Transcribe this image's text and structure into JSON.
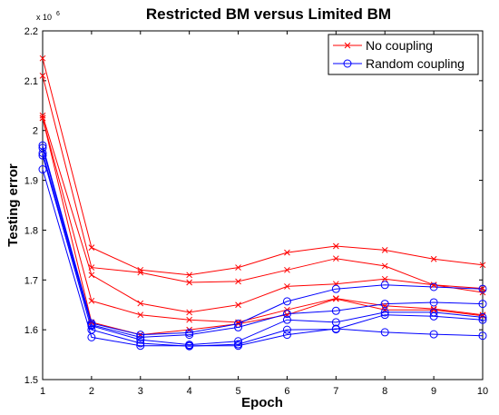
{
  "chart_data": {
    "type": "line",
    "title": "Restricted BM versus Limited BM",
    "xlabel": "Epoch",
    "ylabel": "Testing error",
    "y_multiplier_label": "x 10",
    "y_multiplier_exponent": "6",
    "x": [
      1,
      2,
      3,
      4,
      5,
      6,
      7,
      8,
      9,
      10
    ],
    "xlim": [
      1,
      10
    ],
    "ylim": [
      1.5,
      2.2
    ],
    "x_ticks": [
      "1",
      "2",
      "3",
      "4",
      "5",
      "6",
      "7",
      "8",
      "9",
      "10"
    ],
    "y_ticks": [
      "1.5",
      "1.6",
      "1.7",
      "1.8",
      "1.9",
      "2",
      "2.1",
      "2.2"
    ],
    "grid": false,
    "legend_position": "top-right",
    "groups": [
      {
        "name": "No coupling",
        "color": "#ff0000",
        "marker": "x",
        "series": [
          [
            2.145,
            1.765,
            1.72,
            1.71,
            1.725,
            1.755,
            1.768,
            1.76,
            1.742,
            1.73
          ],
          [
            2.11,
            1.725,
            1.715,
            1.695,
            1.697,
            1.72,
            1.743,
            1.728,
            1.69,
            1.683
          ],
          [
            2.03,
            1.71,
            1.653,
            1.635,
            1.65,
            1.687,
            1.692,
            1.702,
            1.69,
            1.675
          ],
          [
            2.025,
            1.658,
            1.63,
            1.62,
            1.615,
            1.64,
            1.663,
            1.648,
            1.642,
            1.63
          ],
          [
            2.025,
            1.615,
            1.59,
            1.6,
            1.612,
            1.63,
            1.662,
            1.64,
            1.64,
            1.628
          ]
        ]
      },
      {
        "name": "Random coupling",
        "color": "#0000ff",
        "marker": "o",
        "series": [
          [
            1.97,
            1.613,
            1.59,
            1.594,
            1.612,
            1.657,
            1.682,
            1.69,
            1.686,
            1.682
          ],
          [
            1.965,
            1.61,
            1.585,
            1.59,
            1.605,
            1.632,
            1.638,
            1.652,
            1.655,
            1.652
          ],
          [
            1.955,
            1.608,
            1.58,
            1.57,
            1.577,
            1.62,
            1.615,
            1.635,
            1.635,
            1.625
          ],
          [
            1.95,
            1.6,
            1.573,
            1.567,
            1.571,
            1.6,
            1.601,
            1.63,
            1.627,
            1.62
          ],
          [
            1.922,
            1.585,
            1.568,
            1.568,
            1.568,
            1.59,
            1.602,
            1.595,
            1.591,
            1.588
          ]
        ]
      }
    ]
  }
}
